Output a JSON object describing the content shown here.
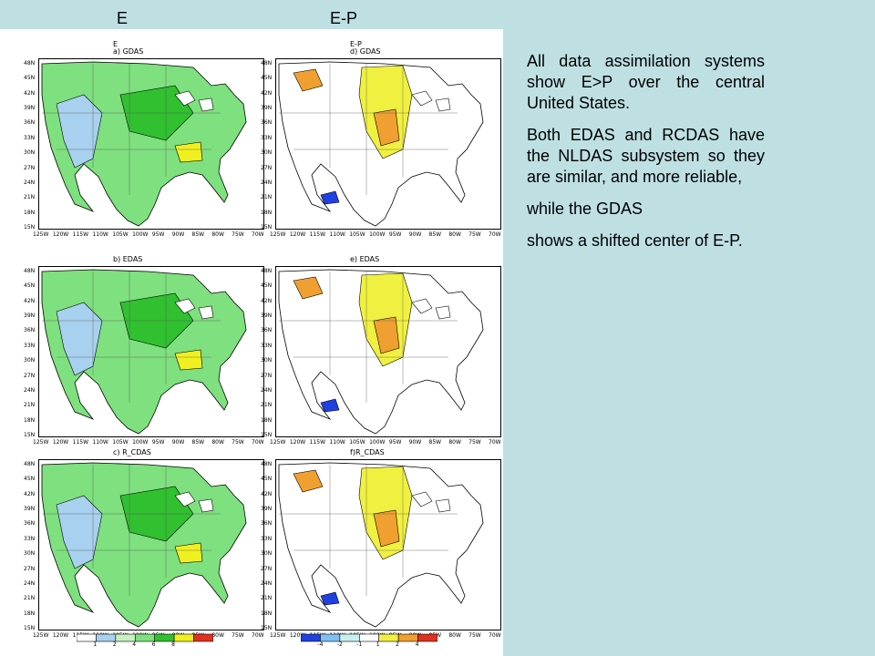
{
  "columns": {
    "left": "E",
    "right": "E-P"
  },
  "panels": [
    {
      "id": "a",
      "title_line1": "E",
      "title_line2": "a)  GDAS",
      "palette": "green"
    },
    {
      "id": "d",
      "title_line1": "E-P",
      "title_line2": "d)  GDAS",
      "palette": "yellow"
    },
    {
      "id": "b",
      "title_line1": "",
      "title_line2": "b)   EDAS",
      "palette": "green"
    },
    {
      "id": "e",
      "title_line1": "",
      "title_line2": "e)  EDAS",
      "palette": "yellow"
    },
    {
      "id": "c",
      "title_line1": "",
      "title_line2": "c)   R_CDAS",
      "palette": "green"
    },
    {
      "id": "f",
      "title_line1": "",
      "title_line2": "f)R_CDAS",
      "palette": "yellow"
    }
  ],
  "latitudes": [
    "48N",
    "45N",
    "42N",
    "39N",
    "36N",
    "33N",
    "30N",
    "27N",
    "24N",
    "21N",
    "18N",
    "15N"
  ],
  "longitudes": [
    "125W",
    "120W",
    "115W",
    "110W",
    "105W",
    "100W",
    "95W",
    "90W",
    "85W",
    "80W",
    "75W",
    "70W"
  ],
  "colorbars": {
    "left": {
      "labels": [
        "1",
        "2",
        "4",
        "6",
        "8"
      ],
      "colors": [
        "#ffffff",
        "#a8d0ef",
        "#c8f0c0",
        "#7ee07e",
        "#30c030",
        "#f0f020",
        "#e03020"
      ]
    },
    "right": {
      "labels": [
        "-4",
        "-2",
        "-1",
        "1",
        "2",
        "4"
      ],
      "colors": [
        "#2040e0",
        "#80c0f0",
        "#c8f0f0",
        "#ffffff",
        "#f0f040",
        "#f0a030",
        "#e03020"
      ]
    }
  },
  "text": {
    "p1": "All data assimilation systems show E>P over the central United States.",
    "p2": "Both EDAS and RCDAS have the NLDAS subsystem so they are similar, and more reliable,",
    "p3": "while the GDAS",
    "p4": "shows a shifted center of E-P."
  }
}
